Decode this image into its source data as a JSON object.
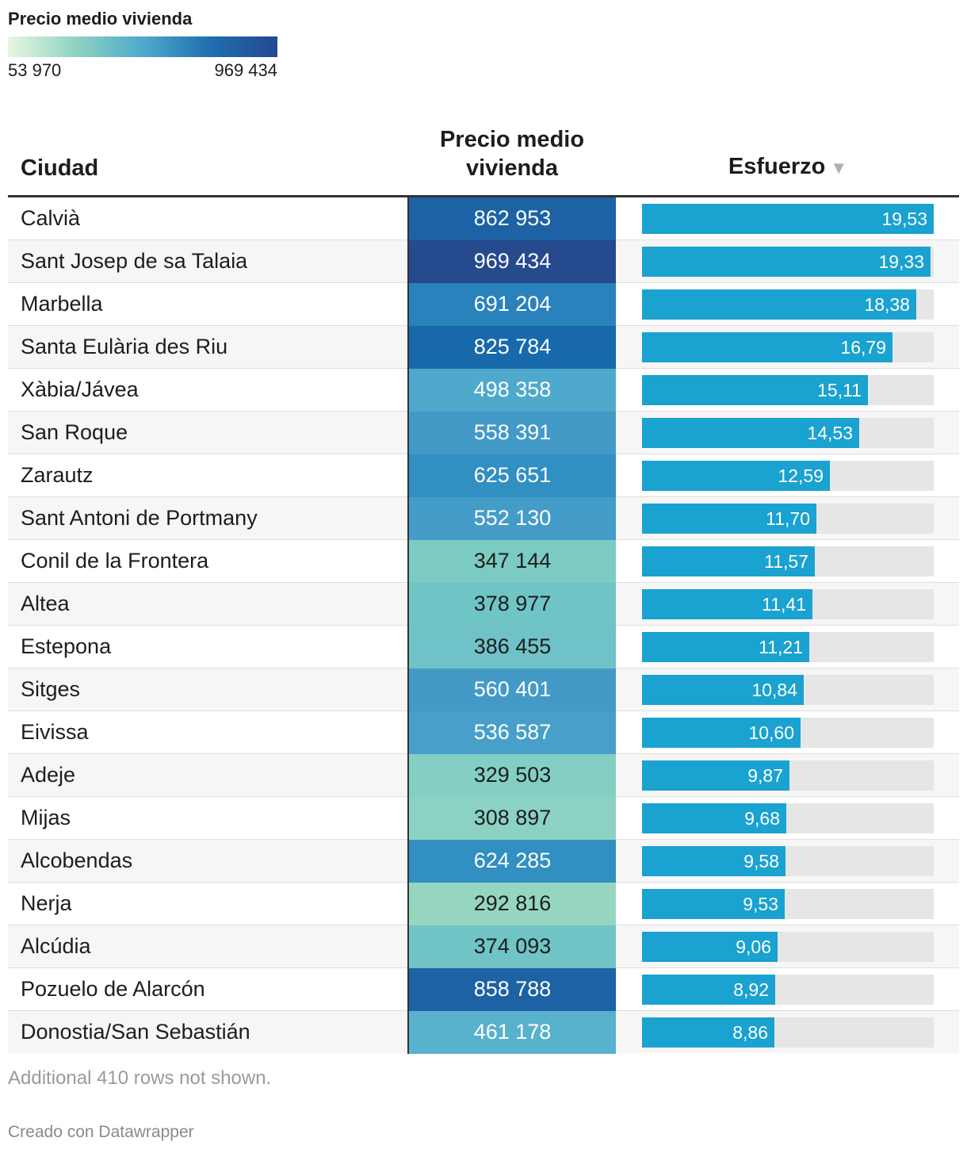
{
  "legend": {
    "title": "Precio medio vivienda",
    "min_label": "53 970",
    "max_label": "969 434",
    "min_value": 53970,
    "max_value": 969434,
    "gradient": [
      "#e9f6e2",
      "#8fd3c1",
      "#4fa9cc",
      "#1f6eb0",
      "#24498f"
    ]
  },
  "headers": {
    "city": "Ciudad",
    "price_line1": "Precio medio",
    "price_line2": "vivienda",
    "effort": "Esfuerzo",
    "sort_icon": "▼"
  },
  "chart_data": {
    "type": "table",
    "title": "Precio medio vivienda",
    "columns": [
      "Ciudad",
      "Precio medio vivienda",
      "Esfuerzo"
    ],
    "effort_max": 19.53,
    "bar_color": "#1aa2d0",
    "track_color": "#e6e6e6",
    "rows": [
      {
        "city": "Calvià",
        "price": "862 953",
        "price_value": 862953,
        "price_color": "#1c62a4",
        "effort": "19,53",
        "effort_value": 19.53
      },
      {
        "city": "Sant Josep de sa Talaia",
        "price": "969 434",
        "price_value": 969434,
        "price_color": "#254a8e",
        "effort": "19,33",
        "effort_value": 19.33
      },
      {
        "city": "Marbella",
        "price": "691 204",
        "price_color": "#2a82bc",
        "price_value": 691204,
        "effort": "18,38",
        "effort_value": 18.38
      },
      {
        "city": "Santa Eulària des Riu",
        "price": "825 784",
        "price_value": 825784,
        "price_color": "#1769ac",
        "effort": "16,79",
        "effort_value": 16.79
      },
      {
        "city": "Xàbia/Jávea",
        "price": "498 358",
        "price_value": 498358,
        "price_color": "#4fa9cc",
        "effort": "15,11",
        "effort_value": 15.11
      },
      {
        "city": "San Roque",
        "price": "558 391",
        "price_value": 558391,
        "price_color": "#439ac7",
        "effort": "14,53",
        "effort_value": 14.53
      },
      {
        "city": "Zarautz",
        "price": "625 651",
        "price_value": 625651,
        "price_color": "#318fc2",
        "effort": "12,59",
        "effort_value": 12.59
      },
      {
        "city": "Sant Antoni de Portmany",
        "price": "552 130",
        "price_value": 552130,
        "price_color": "#449cc8",
        "effort": "11,70",
        "effort_value": 11.7
      },
      {
        "city": "Conil de la Frontera",
        "price": "347 144",
        "price_value": 347144,
        "price_color": "#7ccbc3",
        "effort": "11,57",
        "effort_value": 11.57
      },
      {
        "city": "Altea",
        "price": "378 977",
        "price_value": 378977,
        "price_color": "#6fc4c6",
        "effort": "11,41",
        "effort_value": 11.41
      },
      {
        "city": "Estepona",
        "price": "386 455",
        "price_value": 386455,
        "price_color": "#6fc2c7",
        "effort": "11,21",
        "effort_value": 11.21
      },
      {
        "city": "Sitges",
        "price": "560 401",
        "price_value": 560401,
        "price_color": "#439ac7",
        "effort": "10,84",
        "effort_value": 10.84
      },
      {
        "city": "Eivissa",
        "price": "536 587",
        "price_value": 536587,
        "price_color": "#48a0ca",
        "effort": "10,60",
        "effort_value": 10.6
      },
      {
        "city": "Adeje",
        "price": "329 503",
        "price_value": 329503,
        "price_color": "#83cfc3",
        "effort": "9,87",
        "effort_value": 9.87
      },
      {
        "city": "Mijas",
        "price": "308 897",
        "price_value": 308897,
        "price_color": "#8bd2c3",
        "effort": "9,68",
        "effort_value": 9.68
      },
      {
        "city": "Alcobendas",
        "price": "624 285",
        "price_value": 624285,
        "price_color": "#318fc2",
        "effort": "9,58",
        "effort_value": 9.58
      },
      {
        "city": "Nerja",
        "price": "292 816",
        "price_value": 292816,
        "price_color": "#96d6c1",
        "effort": "9,53",
        "effort_value": 9.53
      },
      {
        "city": "Alcúdia",
        "price": "374 093",
        "price_value": 374093,
        "price_color": "#71c4c6",
        "effort": "9,06",
        "effort_value": 9.06
      },
      {
        "city": "Pozuelo de Alarcón",
        "price": "858 788",
        "price_value": 858788,
        "price_color": "#1c62a4",
        "effort": "8,92",
        "effort_value": 8.92
      },
      {
        "city": "Donostia/San Sebastián",
        "price": "461 178",
        "price_value": 461178,
        "price_color": "#58b1cd",
        "effort": "8,86",
        "effort_value": 8.86
      }
    ]
  },
  "notes": "Additional 410 rows not shown.",
  "footer": "Creado con Datawrapper"
}
